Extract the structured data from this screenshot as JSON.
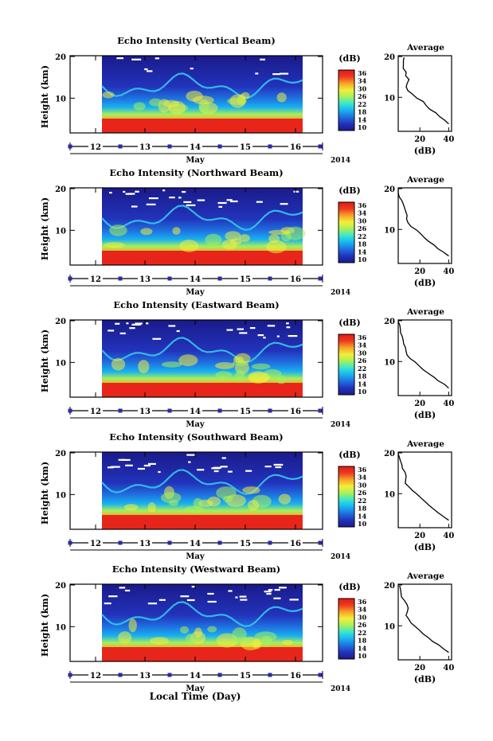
{
  "figure": {
    "bottom_label": "Local Time (Day)",
    "colorbar_unit": "(dB)",
    "colorbar_ticks": [
      "36",
      "34",
      "30",
      "26",
      "22",
      "18",
      "14",
      "10"
    ],
    "colorscale": [
      "#1a1a8a",
      "#2233bb",
      "#1f6fe0",
      "#19b2ef",
      "#35e6d2",
      "#a6f05a",
      "#f2ef3a",
      "#f7a426",
      "#ef3a22",
      "#e11a12"
    ],
    "panel_height_label": "Height (km)",
    "height_ticks": [
      "20",
      "10"
    ],
    "day_ticks": [
      "12",
      "13",
      "14",
      "15",
      "16"
    ],
    "month_label": "May",
    "year_label": "2014",
    "avg_title": "Average",
    "avg_xlabel": "(dB)",
    "avg_xticks": [
      "20",
      "40"
    ],
    "avg_yticks": [
      "20",
      "10"
    ]
  },
  "chart_data": [
    {
      "type": "heatmap",
      "title": "Echo Intensity (Vertical Beam)",
      "ylabel": "Height (km)",
      "x_ticks": [
        "12",
        "13",
        "14",
        "15",
        "16"
      ],
      "ylim": [
        0,
        20
      ],
      "colorbar_range": [
        10,
        36
      ],
      "average_profile": {
        "title": "Average",
        "xlabel": "(dB)",
        "height_km": [
          2,
          4,
          6,
          8,
          10,
          12,
          14,
          16,
          18,
          20
        ],
        "values_db": [
          40,
          34,
          27,
          22,
          15,
          10,
          12,
          10,
          8,
          9
        ]
      }
    },
    {
      "type": "heatmap",
      "title": "Echo Intensity (Northward Beam)",
      "ylabel": "Height (km)",
      "x_ticks": [
        "12",
        "13",
        "14",
        "15",
        "16"
      ],
      "ylim": [
        0,
        20
      ],
      "colorbar_range": [
        10,
        36
      ],
      "average_profile": {
        "title": "Average",
        "xlabel": "(dB)",
        "height_km": [
          2,
          4,
          6,
          8,
          10,
          12,
          14,
          16,
          18,
          20
        ],
        "values_db": [
          40,
          32,
          26,
          20,
          14,
          11,
          10,
          8,
          6,
          5
        ]
      }
    },
    {
      "type": "heatmap",
      "title": "Echo Intensity (Eastward Beam)",
      "ylabel": "Height (km)",
      "x_ticks": [
        "12",
        "13",
        "14",
        "15",
        "16"
      ],
      "ylim": [
        0,
        20
      ],
      "colorbar_range": [
        10,
        36
      ],
      "average_profile": {
        "title": "Average",
        "xlabel": "(dB)",
        "height_km": [
          2,
          4,
          6,
          8,
          10,
          12,
          14,
          16,
          18,
          20
        ],
        "values_db": [
          40,
          33,
          26,
          20,
          13,
          10,
          9,
          8,
          6,
          5
        ]
      }
    },
    {
      "type": "heatmap",
      "title": "Echo Intensity (Southward Beam)",
      "ylabel": "Height (km)",
      "x_ticks": [
        "12",
        "13",
        "14",
        "15",
        "16"
      ],
      "ylim": [
        0,
        20
      ],
      "colorbar_range": [
        10,
        36
      ],
      "average_profile": {
        "title": "Average",
        "xlabel": "(dB)",
        "height_km": [
          2,
          4,
          6,
          8,
          10,
          12,
          14,
          16,
          18,
          20
        ],
        "values_db": [
          40,
          33,
          27,
          21,
          15,
          10,
          10,
          8,
          6,
          5
        ]
      }
    },
    {
      "type": "heatmap",
      "title": "Echo Intensity (Westward Beam)",
      "ylabel": "Height (km)",
      "x_ticks": [
        "12",
        "13",
        "14",
        "15",
        "16"
      ],
      "ylim": [
        0,
        20
      ],
      "colorbar_range": [
        10,
        36
      ],
      "average_profile": {
        "title": "Average",
        "xlabel": "(dB)",
        "height_km": [
          2,
          4,
          6,
          8,
          10,
          12,
          14,
          16,
          18,
          20
        ],
        "values_db": [
          40,
          33,
          26,
          20,
          14,
          11,
          12,
          9,
          7,
          6
        ]
      }
    }
  ]
}
